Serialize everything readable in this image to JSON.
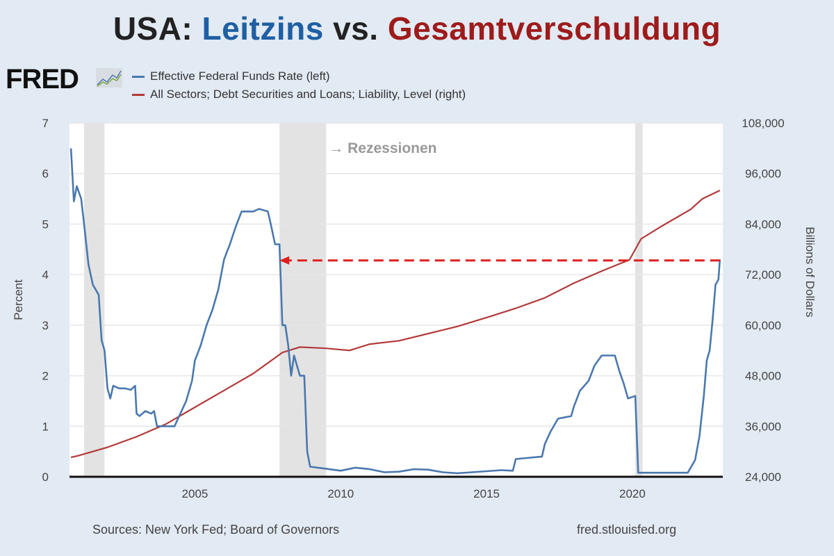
{
  "title": {
    "part1": "USA: ",
    "part2": "Leitzins",
    "part3": " vs. ",
    "part4": "Gesamtverschuldung"
  },
  "logo": "FRED",
  "footer": {
    "sources": "Sources: New York Fed; Board of Governors",
    "url": "fred.stlouisfed.org"
  },
  "colors": {
    "blue": "#4a78ae",
    "red": "#b23a3a",
    "title_blue": "#1f5fa3",
    "title_red": "#9e1b1b",
    "recession": "#e3e3e3",
    "arrow": "#e01e1e",
    "background": "#e2eaf3"
  },
  "chart_data": {
    "type": "line",
    "title": "USA: Leitzins vs. Gesamtverschuldung",
    "xlim": [
      2000.7,
      2023.1
    ],
    "xticks": [
      2005,
      2010,
      2015,
      2020
    ],
    "ylabel_left": "Percent",
    "ylim_left": [
      0,
      7
    ],
    "yticks_left": [
      0,
      1,
      2,
      3,
      4,
      5,
      6,
      7
    ],
    "ylabel_right": "Billions of Dollars",
    "ylim_right": [
      24000,
      108000
    ],
    "yticks_right": [
      "24,000",
      "36,000",
      "48,000",
      "60,000",
      "72,000",
      "84,000",
      "96,000",
      "108,000"
    ],
    "grid": "horizontal",
    "legend_placement": "top-left",
    "recessions": [
      [
        2001.2,
        2001.9
      ],
      [
        2007.9,
        2009.5
      ],
      [
        2020.1,
        2020.35
      ]
    ],
    "annotation": {
      "text": "→ Rezessionen"
    },
    "arrow": {
      "from_x": 2023.0,
      "to_x": 2007.9,
      "y_percent": 4.28,
      "style": "dashed"
    },
    "series": [
      {
        "name": "Effective Federal Funds Rate (left)",
        "axis": "left",
        "points": [
          [
            2000.75,
            6.5
          ],
          [
            2000.85,
            5.45
          ],
          [
            2000.95,
            5.75
          ],
          [
            2001.1,
            5.5
          ],
          [
            2001.2,
            5.0
          ],
          [
            2001.35,
            4.2
          ],
          [
            2001.5,
            3.8
          ],
          [
            2001.7,
            3.6
          ],
          [
            2001.8,
            2.7
          ],
          [
            2001.9,
            2.5
          ],
          [
            2002.0,
            1.75
          ],
          [
            2002.1,
            1.55
          ],
          [
            2002.2,
            1.8
          ],
          [
            2002.4,
            1.75
          ],
          [
            2002.6,
            1.75
          ],
          [
            2002.8,
            1.72
          ],
          [
            2002.95,
            1.8
          ],
          [
            2003.0,
            1.25
          ],
          [
            2003.1,
            1.2
          ],
          [
            2003.3,
            1.3
          ],
          [
            2003.5,
            1.25
          ],
          [
            2003.6,
            1.3
          ],
          [
            2003.7,
            1.0
          ],
          [
            2003.9,
            1.0
          ],
          [
            2004.1,
            1.0
          ],
          [
            2004.3,
            1.0
          ],
          [
            2004.5,
            1.25
          ],
          [
            2004.7,
            1.5
          ],
          [
            2004.9,
            1.9
          ],
          [
            2005.0,
            2.3
          ],
          [
            2005.2,
            2.6
          ],
          [
            2005.4,
            3.0
          ],
          [
            2005.6,
            3.3
          ],
          [
            2005.8,
            3.7
          ],
          [
            2006.0,
            4.3
          ],
          [
            2006.2,
            4.6
          ],
          [
            2006.4,
            4.95
          ],
          [
            2006.6,
            5.25
          ],
          [
            2006.8,
            5.25
          ],
          [
            2007.0,
            5.25
          ],
          [
            2007.2,
            5.3
          ],
          [
            2007.5,
            5.25
          ],
          [
            2007.6,
            5.0
          ],
          [
            2007.75,
            4.6
          ],
          [
            2007.9,
            4.6
          ],
          [
            2008.0,
            3.0
          ],
          [
            2008.1,
            3.0
          ],
          [
            2008.2,
            2.6
          ],
          [
            2008.3,
            2.0
          ],
          [
            2008.4,
            2.4
          ],
          [
            2008.6,
            2.0
          ],
          [
            2008.75,
            2.0
          ],
          [
            2008.85,
            0.5
          ],
          [
            2008.95,
            0.2
          ],
          [
            2009.5,
            0.16
          ],
          [
            2010.0,
            0.12
          ],
          [
            2010.5,
            0.18
          ],
          [
            2011.0,
            0.15
          ],
          [
            2011.5,
            0.09
          ],
          [
            2012.0,
            0.1
          ],
          [
            2012.5,
            0.15
          ],
          [
            2013.0,
            0.14
          ],
          [
            2013.5,
            0.09
          ],
          [
            2014.0,
            0.07
          ],
          [
            2014.5,
            0.09
          ],
          [
            2015.0,
            0.11
          ],
          [
            2015.5,
            0.13
          ],
          [
            2015.9,
            0.12
          ],
          [
            2016.0,
            0.35
          ],
          [
            2016.9,
            0.4
          ],
          [
            2017.0,
            0.65
          ],
          [
            2017.2,
            0.9
          ],
          [
            2017.45,
            1.15
          ],
          [
            2017.9,
            1.2
          ],
          [
            2018.0,
            1.4
          ],
          [
            2018.2,
            1.7
          ],
          [
            2018.5,
            1.9
          ],
          [
            2018.7,
            2.2
          ],
          [
            2018.95,
            2.4
          ],
          [
            2019.4,
            2.4
          ],
          [
            2019.55,
            2.1
          ],
          [
            2019.7,
            1.85
          ],
          [
            2019.85,
            1.55
          ],
          [
            2020.1,
            1.6
          ],
          [
            2020.2,
            0.08
          ],
          [
            2021.0,
            0.08
          ],
          [
            2021.9,
            0.08
          ],
          [
            2022.15,
            0.33
          ],
          [
            2022.3,
            0.8
          ],
          [
            2022.45,
            1.6
          ],
          [
            2022.55,
            2.3
          ],
          [
            2022.65,
            2.5
          ],
          [
            2022.75,
            3.1
          ],
          [
            2022.85,
            3.8
          ],
          [
            2022.95,
            3.9
          ],
          [
            2023.0,
            4.3
          ]
        ]
      },
      {
        "name": "All Sectors; Debt Securities and Loans; Liability, Level (right)",
        "axis": "right",
        "points": [
          [
            2000.75,
            28600
          ],
          [
            2001.0,
            29000
          ],
          [
            2002.0,
            31000
          ],
          [
            2003.0,
            33500
          ],
          [
            2004.0,
            36500
          ],
          [
            2005.0,
            40500
          ],
          [
            2006.0,
            44500
          ],
          [
            2007.0,
            48500
          ],
          [
            2008.0,
            53500
          ],
          [
            2008.6,
            54800
          ],
          [
            2009.5,
            54500
          ],
          [
            2010.3,
            54000
          ],
          [
            2011.0,
            55500
          ],
          [
            2012.0,
            56300
          ],
          [
            2013.0,
            58000
          ],
          [
            2014.0,
            59700
          ],
          [
            2015.0,
            61800
          ],
          [
            2016.0,
            64000
          ],
          [
            2017.0,
            66500
          ],
          [
            2018.0,
            70000
          ],
          [
            2019.0,
            73000
          ],
          [
            2019.9,
            75500
          ],
          [
            2020.3,
            80500
          ],
          [
            2021.0,
            83500
          ],
          [
            2022.0,
            87500
          ],
          [
            2022.4,
            90000
          ],
          [
            2023.0,
            92000
          ]
        ]
      }
    ]
  }
}
